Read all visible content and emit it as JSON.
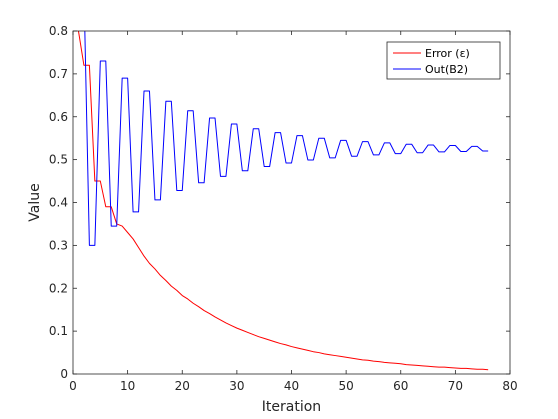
{
  "chart_data": {
    "type": "line",
    "xlabel": "Iteration",
    "ylabel": "Value",
    "xlim": [
      0,
      80
    ],
    "ylim": [
      0,
      0.8
    ],
    "xticks": [
      0,
      10,
      20,
      30,
      40,
      50,
      60,
      70,
      80
    ],
    "yticks": [
      0,
      0.1,
      0.2,
      0.3,
      0.4,
      0.5,
      0.6,
      0.7,
      0.8
    ],
    "xtick_labels": [
      "0",
      "10",
      "20",
      "30",
      "40",
      "50",
      "60",
      "70",
      "80"
    ],
    "ytick_labels": [
      "0",
      "0.1",
      "0.2",
      "0.3",
      "0.4",
      "0.5",
      "0.6",
      "0.7",
      "0.8"
    ],
    "grid": false,
    "legend": {
      "placement": "top-right"
    },
    "series": [
      {
        "name": "Error (ε)",
        "color": "#ff0000",
        "points": [
          [
            1,
            0.8
          ],
          [
            2,
            0.72
          ],
          [
            3,
            0.72
          ],
          [
            4,
            0.45
          ],
          [
            5,
            0.45
          ],
          [
            6,
            0.39
          ],
          [
            7,
            0.39
          ],
          [
            8,
            0.35
          ],
          [
            9,
            0.345
          ],
          [
            10,
            0.33
          ],
          [
            11,
            0.315
          ],
          [
            12,
            0.295
          ],
          [
            13,
            0.275
          ],
          [
            14,
            0.258
          ],
          [
            15,
            0.245
          ],
          [
            16,
            0.23
          ],
          [
            17,
            0.218
          ],
          [
            18,
            0.205
          ],
          [
            19,
            0.195
          ],
          [
            20,
            0.183
          ],
          [
            21,
            0.175
          ],
          [
            22,
            0.165
          ],
          [
            23,
            0.157
          ],
          [
            24,
            0.148
          ],
          [
            25,
            0.141
          ],
          [
            26,
            0.133
          ],
          [
            27,
            0.126
          ],
          [
            28,
            0.119
          ],
          [
            29,
            0.113
          ],
          [
            30,
            0.107
          ],
          [
            31,
            0.102
          ],
          [
            32,
            0.097
          ],
          [
            33,
            0.092
          ],
          [
            34,
            0.087
          ],
          [
            35,
            0.083
          ],
          [
            36,
            0.079
          ],
          [
            37,
            0.075
          ],
          [
            38,
            0.071
          ],
          [
            39,
            0.068
          ],
          [
            40,
            0.064
          ],
          [
            41,
            0.061
          ],
          [
            42,
            0.058
          ],
          [
            43,
            0.055
          ],
          [
            44,
            0.052
          ],
          [
            45,
            0.05
          ],
          [
            46,
            0.047
          ],
          [
            47,
            0.045
          ],
          [
            48,
            0.043
          ],
          [
            49,
            0.041
          ],
          [
            50,
            0.039
          ],
          [
            51,
            0.037
          ],
          [
            52,
            0.035
          ],
          [
            53,
            0.033
          ],
          [
            54,
            0.032
          ],
          [
            55,
            0.03
          ],
          [
            56,
            0.029
          ],
          [
            57,
            0.027
          ],
          [
            58,
            0.026
          ],
          [
            59,
            0.025
          ],
          [
            60,
            0.024
          ],
          [
            61,
            0.022
          ],
          [
            62,
            0.021
          ],
          [
            63,
            0.02
          ],
          [
            64,
            0.019
          ],
          [
            65,
            0.018
          ],
          [
            66,
            0.017
          ],
          [
            67,
            0.016
          ],
          [
            68,
            0.016
          ],
          [
            69,
            0.015
          ],
          [
            70,
            0.014
          ],
          [
            71,
            0.013
          ],
          [
            72,
            0.013
          ],
          [
            73,
            0.012
          ],
          [
            74,
            0.011
          ],
          [
            75,
            0.011
          ],
          [
            76,
            0.01
          ]
        ]
      },
      {
        "name": "Out(B2)",
        "color": "#0000ff",
        "points": [
          [
            1,
            0.8
          ],
          [
            1.5,
            0.9
          ],
          [
            2,
            0.9
          ],
          [
            3,
            0.3
          ],
          [
            4,
            0.3
          ],
          [
            5,
            0.73
          ],
          [
            6,
            0.73
          ],
          [
            7,
            0.345
          ],
          [
            8,
            0.345
          ],
          [
            9,
            0.69
          ],
          [
            10,
            0.69
          ],
          [
            11,
            0.378
          ],
          [
            12,
            0.378
          ],
          [
            13,
            0.66
          ],
          [
            14,
            0.66
          ],
          [
            15,
            0.406
          ],
          [
            16,
            0.406
          ],
          [
            17,
            0.636
          ],
          [
            18,
            0.636
          ],
          [
            19,
            0.428
          ],
          [
            20,
            0.428
          ],
          [
            21,
            0.614
          ],
          [
            22,
            0.614
          ],
          [
            23,
            0.446
          ],
          [
            24,
            0.446
          ],
          [
            25,
            0.597
          ],
          [
            26,
            0.597
          ],
          [
            27,
            0.461
          ],
          [
            28,
            0.461
          ],
          [
            29,
            0.583
          ],
          [
            30,
            0.583
          ],
          [
            31,
            0.474
          ],
          [
            32,
            0.474
          ],
          [
            33,
            0.572
          ],
          [
            34,
            0.572
          ],
          [
            35,
            0.484
          ],
          [
            36,
            0.484
          ],
          [
            37,
            0.563
          ],
          [
            38,
            0.563
          ],
          [
            39,
            0.492
          ],
          [
            40,
            0.492
          ],
          [
            41,
            0.556
          ],
          [
            42,
            0.556
          ],
          [
            43,
            0.499
          ],
          [
            44,
            0.499
          ],
          [
            45,
            0.55
          ],
          [
            46,
            0.55
          ],
          [
            47,
            0.504
          ],
          [
            48,
            0.504
          ],
          [
            49,
            0.545
          ],
          [
            50,
            0.545
          ],
          [
            51,
            0.508
          ],
          [
            52,
            0.508
          ],
          [
            53,
            0.542
          ],
          [
            54,
            0.542
          ],
          [
            55,
            0.511
          ],
          [
            56,
            0.511
          ],
          [
            57,
            0.539
          ],
          [
            58,
            0.539
          ],
          [
            59,
            0.514
          ],
          [
            60,
            0.514
          ],
          [
            61,
            0.536
          ],
          [
            62,
            0.536
          ],
          [
            63,
            0.516
          ],
          [
            64,
            0.516
          ],
          [
            65,
            0.534
          ],
          [
            66,
            0.534
          ],
          [
            67,
            0.518
          ],
          [
            68,
            0.518
          ],
          [
            69,
            0.533
          ],
          [
            70,
            0.533
          ],
          [
            71,
            0.519
          ],
          [
            72,
            0.519
          ],
          [
            73,
            0.531
          ],
          [
            74,
            0.531
          ],
          [
            75,
            0.52
          ],
          [
            76,
            0.52
          ]
        ]
      }
    ]
  }
}
